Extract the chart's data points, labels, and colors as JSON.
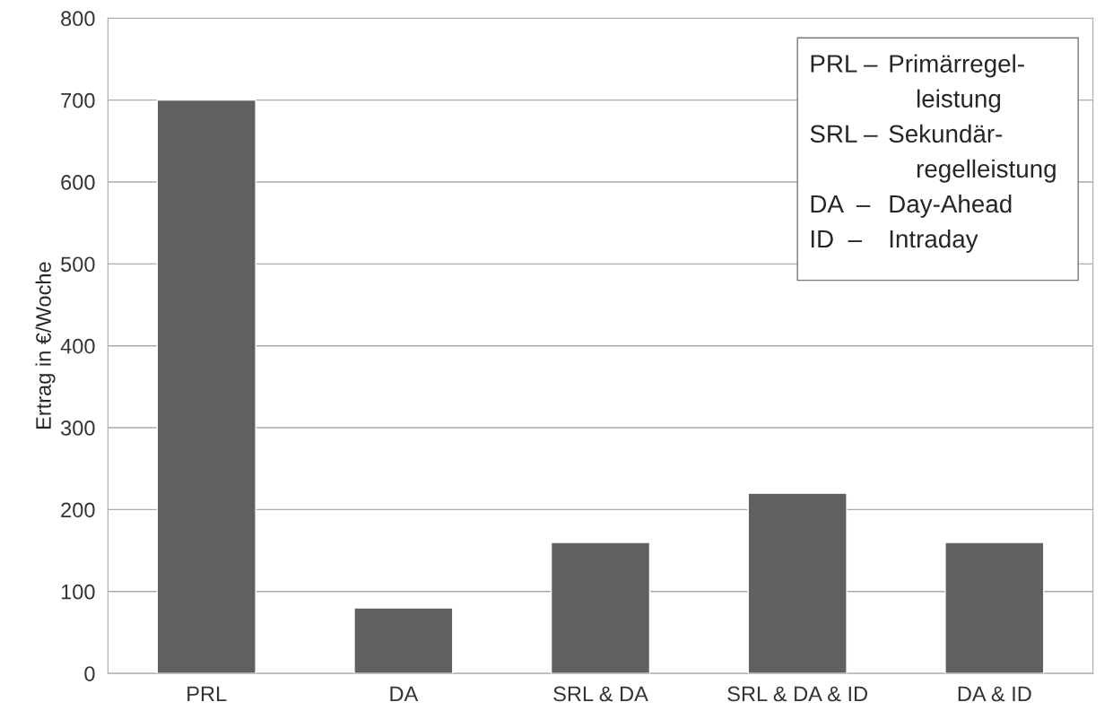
{
  "chart_data": {
    "type": "bar",
    "ylabel": "Ertrag in €/Woche",
    "categories": [
      "PRL",
      "DA",
      "SRL & DA",
      "SRL & DA & ID",
      "DA & ID"
    ],
    "values": [
      700,
      80,
      160,
      220,
      160
    ],
    "color": "#606060",
    "ylim": [
      0,
      800
    ],
    "yticks": [
      0,
      100,
      200,
      300,
      400,
      500,
      600,
      700,
      800
    ],
    "grid": "y",
    "annotations": [
      "PRL – Primärregel-\nleistung",
      "SRL – Sekundär-\nregelleistung",
      "DA  – Day-Ahead",
      "ID  – Intraday"
    ]
  }
}
